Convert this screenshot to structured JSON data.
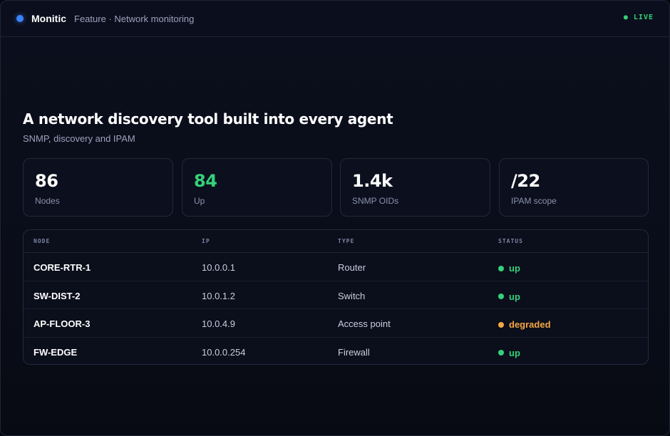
{
  "header": {
    "brand": "Monitic",
    "breadcrumb": "Feature · Network monitoring",
    "live": "● LIVE",
    "brand_color": "#3b82f6"
  },
  "hero": {
    "title": "A network discovery tool built into every agent",
    "subtitle": "SNMP, discovery and IPAM"
  },
  "stats": [
    {
      "value": "86",
      "label": "Nodes"
    },
    {
      "value": "84",
      "label": "Up"
    },
    {
      "value": "1.4k",
      "label": "SNMP OIDs"
    },
    {
      "value": "/22",
      "label": "IPAM scope"
    }
  ],
  "table": {
    "headers": {
      "node": "NODE",
      "ip": "IP",
      "type": "TYPE",
      "status": "STATUS"
    },
    "rows": [
      {
        "node": "CORE-RTR-1",
        "ip": "10.0.0.1",
        "type": "Router",
        "status": "up",
        "status_color": "#34d17a"
      },
      {
        "node": "SW-DIST-2",
        "ip": "10.0.1.2",
        "type": "Switch",
        "status": "up",
        "status_color": "#34d17a"
      },
      {
        "node": "AP-FLOOR-3",
        "ip": "10.0.4.9",
        "type": "Access point",
        "status": "degraded",
        "status_color": "#f5a742"
      },
      {
        "node": "FW-EDGE",
        "ip": "10.0.0.254",
        "type": "Firewall",
        "status": "up",
        "status_color": "#34d17a"
      }
    ]
  }
}
